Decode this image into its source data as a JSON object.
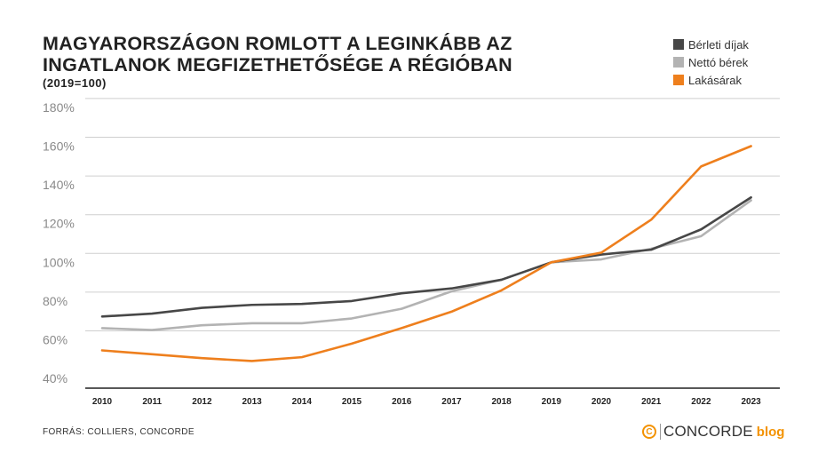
{
  "header": {
    "title_line1": "MAGYARORSZÁGON ROMLOTT A LEGINKÁBB AZ",
    "title_line2": "INGATLANOK MEGFIZETHETŐSÉGE A RÉGIÓBAN",
    "subtitle": "(2019=100)"
  },
  "footer": {
    "source": "FORRÁS: COLLIERS, CONCORDE",
    "brand_mark": "C",
    "brand_name": "CONCORDE",
    "brand_suffix": "blog"
  },
  "chart_data": {
    "type": "line",
    "title": "MAGYARORSZÁGON ROMLOTT A LEGINKÁBB AZ INGATLANOK MEGFIZETHETŐSÉGE A RÉGIÓBAN",
    "subtitle": "(2019=100)",
    "x": [
      2010,
      2011,
      2012,
      2013,
      2014,
      2015,
      2016,
      2017,
      2018,
      2019,
      2020,
      2021,
      2022,
      2023
    ],
    "y_ticks": [
      "40%",
      "60%",
      "80%",
      "100%",
      "120%",
      "140%",
      "160%",
      "180%"
    ],
    "ylim": [
      35,
      180
    ],
    "grid": true,
    "legend_position": "top-right",
    "series": [
      {
        "name": "Bérleti díjak",
        "color": "#474747",
        "values": [
          72,
          73.5,
          76.5,
          78,
          78.5,
          80,
          84,
          86.5,
          91,
          100,
          104,
          106.5,
          117,
          133.5
        ]
      },
      {
        "name": "Nettó bérek",
        "color": "#b3b3b3",
        "values": [
          66,
          65,
          67.5,
          68.5,
          68.5,
          71,
          76,
          85,
          91,
          100,
          101.5,
          107,
          113.5,
          132
        ]
      },
      {
        "name": "Lakásárak",
        "color": "#ee7f1d",
        "values": [
          54.5,
          52.5,
          50.5,
          49,
          51,
          58,
          66,
          74.5,
          85.5,
          100,
          105,
          122,
          149.5,
          160
        ]
      }
    ]
  }
}
